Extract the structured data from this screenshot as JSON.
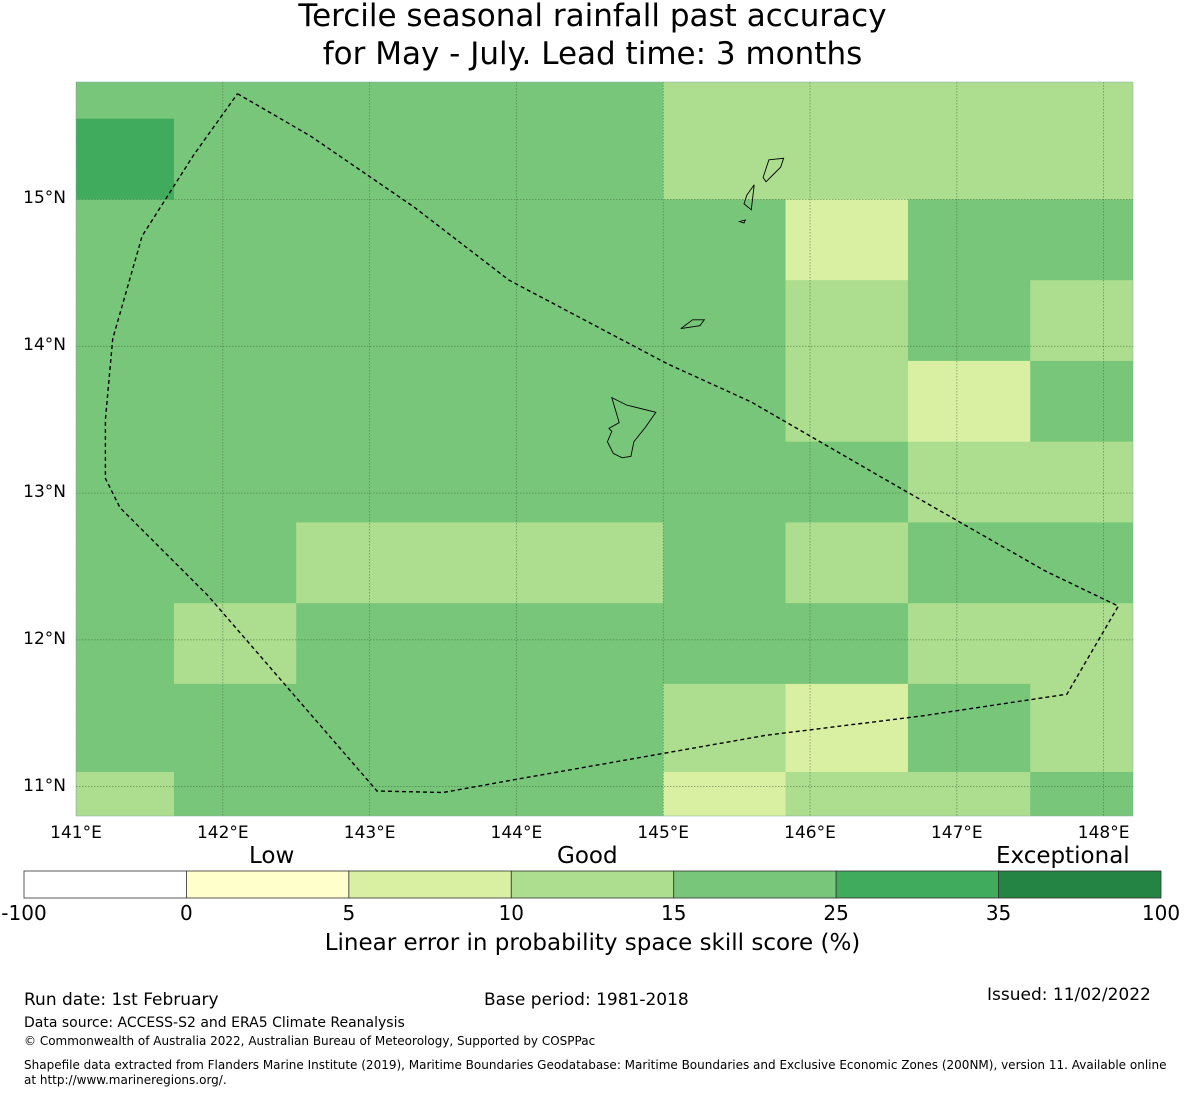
{
  "title": {
    "line1": "Tercile seasonal rainfall past accuracy",
    "line2": "for May - July. Lead time: 3 months"
  },
  "map": {
    "lon_range": [
      141,
      148.2
    ],
    "lat_range": [
      10.8,
      15.8
    ],
    "grid": {
      "lon_edges": [
        141,
        141.667,
        142.5,
        143.333,
        144.167,
        145.0,
        145.833,
        146.667,
        147.5,
        148.2
      ],
      "lat_edges": [
        15.75,
        15.55,
        15.0,
        14.45,
        13.9,
        13.35,
        12.8,
        12.25,
        11.7,
        11.1,
        10.8
      ],
      "values": [
        [
          20,
          20,
          20,
          20,
          20,
          12,
          12,
          12,
          12
        ],
        [
          30,
          20,
          20,
          20,
          20,
          12,
          12,
          12,
          12
        ],
        [
          20,
          20,
          20,
          20,
          20,
          20,
          8,
          20,
          20
        ],
        [
          20,
          20,
          20,
          20,
          20,
          20,
          12,
          20,
          12
        ],
        [
          20,
          20,
          20,
          20,
          20,
          20,
          12,
          8,
          20
        ],
        [
          20,
          20,
          20,
          20,
          20,
          20,
          20,
          12,
          12
        ],
        [
          20,
          20,
          12,
          12,
          12,
          20,
          12,
          20,
          20
        ],
        [
          20,
          12,
          20,
          20,
          20,
          20,
          20,
          12,
          12
        ],
        [
          20,
          20,
          20,
          20,
          20,
          12,
          8,
          20,
          12
        ],
        [
          12,
          20,
          20,
          20,
          20,
          8,
          12,
          12,
          20
        ]
      ]
    },
    "lat_ticks": [
      {
        "value": 15,
        "label": "15°N"
      },
      {
        "value": 14,
        "label": "14°N"
      },
      {
        "value": 13,
        "label": "13°N"
      },
      {
        "value": 12,
        "label": "12°N"
      },
      {
        "value": 11,
        "label": "11°N"
      }
    ],
    "lon_ticks": [
      {
        "value": 141,
        "label": "141°E"
      },
      {
        "value": 142,
        "label": "142°E"
      },
      {
        "value": 143,
        "label": "143°E"
      },
      {
        "value": 144,
        "label": "144°E"
      },
      {
        "value": 145,
        "label": "145°E"
      },
      {
        "value": 146,
        "label": "146°E"
      },
      {
        "value": 147,
        "label": "147°E"
      },
      {
        "value": 148,
        "label": "148°E"
      }
    ],
    "eez_boundary": [
      [
        142.1,
        15.72
      ],
      [
        142.6,
        15.43
      ],
      [
        143.3,
        14.95
      ],
      [
        143.95,
        14.45
      ],
      [
        145.03,
        13.88
      ],
      [
        145.6,
        13.62
      ],
      [
        146.5,
        13.1
      ],
      [
        147.6,
        12.47
      ],
      [
        148.1,
        12.23
      ],
      [
        147.75,
        11.63
      ],
      [
        146.75,
        11.48
      ],
      [
        145.7,
        11.35
      ],
      [
        144.0,
        11.05
      ],
      [
        143.5,
        10.96
      ],
      [
        143.05,
        10.97
      ],
      [
        141.9,
        12.3
      ],
      [
        141.3,
        12.9
      ],
      [
        141.2,
        13.1
      ],
      [
        141.2,
        13.5
      ],
      [
        141.25,
        14.05
      ],
      [
        141.45,
        14.75
      ],
      [
        141.8,
        15.3
      ],
      [
        142.1,
        15.72
      ]
    ],
    "islands": [
      {
        "name": "Guam",
        "coords": [
          [
            144.65,
            13.65
          ],
          [
            144.75,
            13.6
          ],
          [
            144.95,
            13.55
          ],
          [
            144.88,
            13.45
          ],
          [
            144.8,
            13.35
          ],
          [
            144.78,
            13.25
          ],
          [
            144.72,
            13.24
          ],
          [
            144.66,
            13.27
          ],
          [
            144.62,
            13.35
          ],
          [
            144.65,
            13.42
          ],
          [
            144.63,
            13.44
          ],
          [
            144.7,
            13.48
          ],
          [
            144.65,
            13.65
          ]
        ]
      },
      {
        "name": "Rota",
        "coords": [
          [
            145.12,
            14.12
          ],
          [
            145.2,
            14.18
          ],
          [
            145.28,
            14.18
          ],
          [
            145.25,
            14.14
          ],
          [
            145.12,
            14.12
          ]
        ]
      },
      {
        "name": "Saipan",
        "coords": [
          [
            145.72,
            15.27
          ],
          [
            145.82,
            15.28
          ],
          [
            145.8,
            15.22
          ],
          [
            145.75,
            15.17
          ],
          [
            145.7,
            15.12
          ],
          [
            145.68,
            15.15
          ],
          [
            145.72,
            15.27
          ]
        ]
      },
      {
        "name": "Tinian",
        "coords": [
          [
            145.57,
            15.03
          ],
          [
            145.62,
            15.1
          ],
          [
            145.6,
            14.93
          ],
          [
            145.55,
            14.97
          ],
          [
            145.57,
            15.03
          ]
        ]
      },
      {
        "name": "Aguijan",
        "coords": [
          [
            145.52,
            14.85
          ],
          [
            145.56,
            14.86
          ],
          [
            145.55,
            14.84
          ],
          [
            145.52,
            14.85
          ]
        ]
      }
    ]
  },
  "colorbar": {
    "categories": [
      "Low",
      "Good",
      "Exceptional"
    ],
    "bins": [
      {
        "from": -100,
        "to": 0,
        "color": "#ffffff"
      },
      {
        "from": 0,
        "to": 5,
        "color": "#ffffcc"
      },
      {
        "from": 5,
        "to": 10,
        "color": "#d9f0a3"
      },
      {
        "from": 10,
        "to": 15,
        "color": "#addd8e"
      },
      {
        "from": 15,
        "to": 25,
        "color": "#78c679"
      },
      {
        "from": 25,
        "to": 35,
        "color": "#41ab5d"
      },
      {
        "from": 35,
        "to": 100,
        "color": "#238443"
      }
    ],
    "tick_labels": [
      "-100",
      "0",
      "5",
      "10",
      "15",
      "25",
      "35",
      "100"
    ],
    "label": "Linear error in probability space skill score (%)"
  },
  "footer": {
    "run_date": "Run date: 1st February",
    "base_period": "Base period: 1981-2018",
    "issued": "Issued: 11/02/2022",
    "data_source": "Data source: ACCESS-S2 and ERA5 Climate Reanalysis",
    "copyright": "© Commonwealth of Australia 2022, Australian Bureau of Meteorology, Supported by COSPPac",
    "shapefile_line1": "Shapefile data extracted from Flanders Marine Institute (2019), Maritime Boundaries Geodatabase: Maritime Boundaries and Exclusive Economic Zones (200NM), version 11. Available online",
    "shapefile_line2": "at http://www.marineregions.org/."
  }
}
